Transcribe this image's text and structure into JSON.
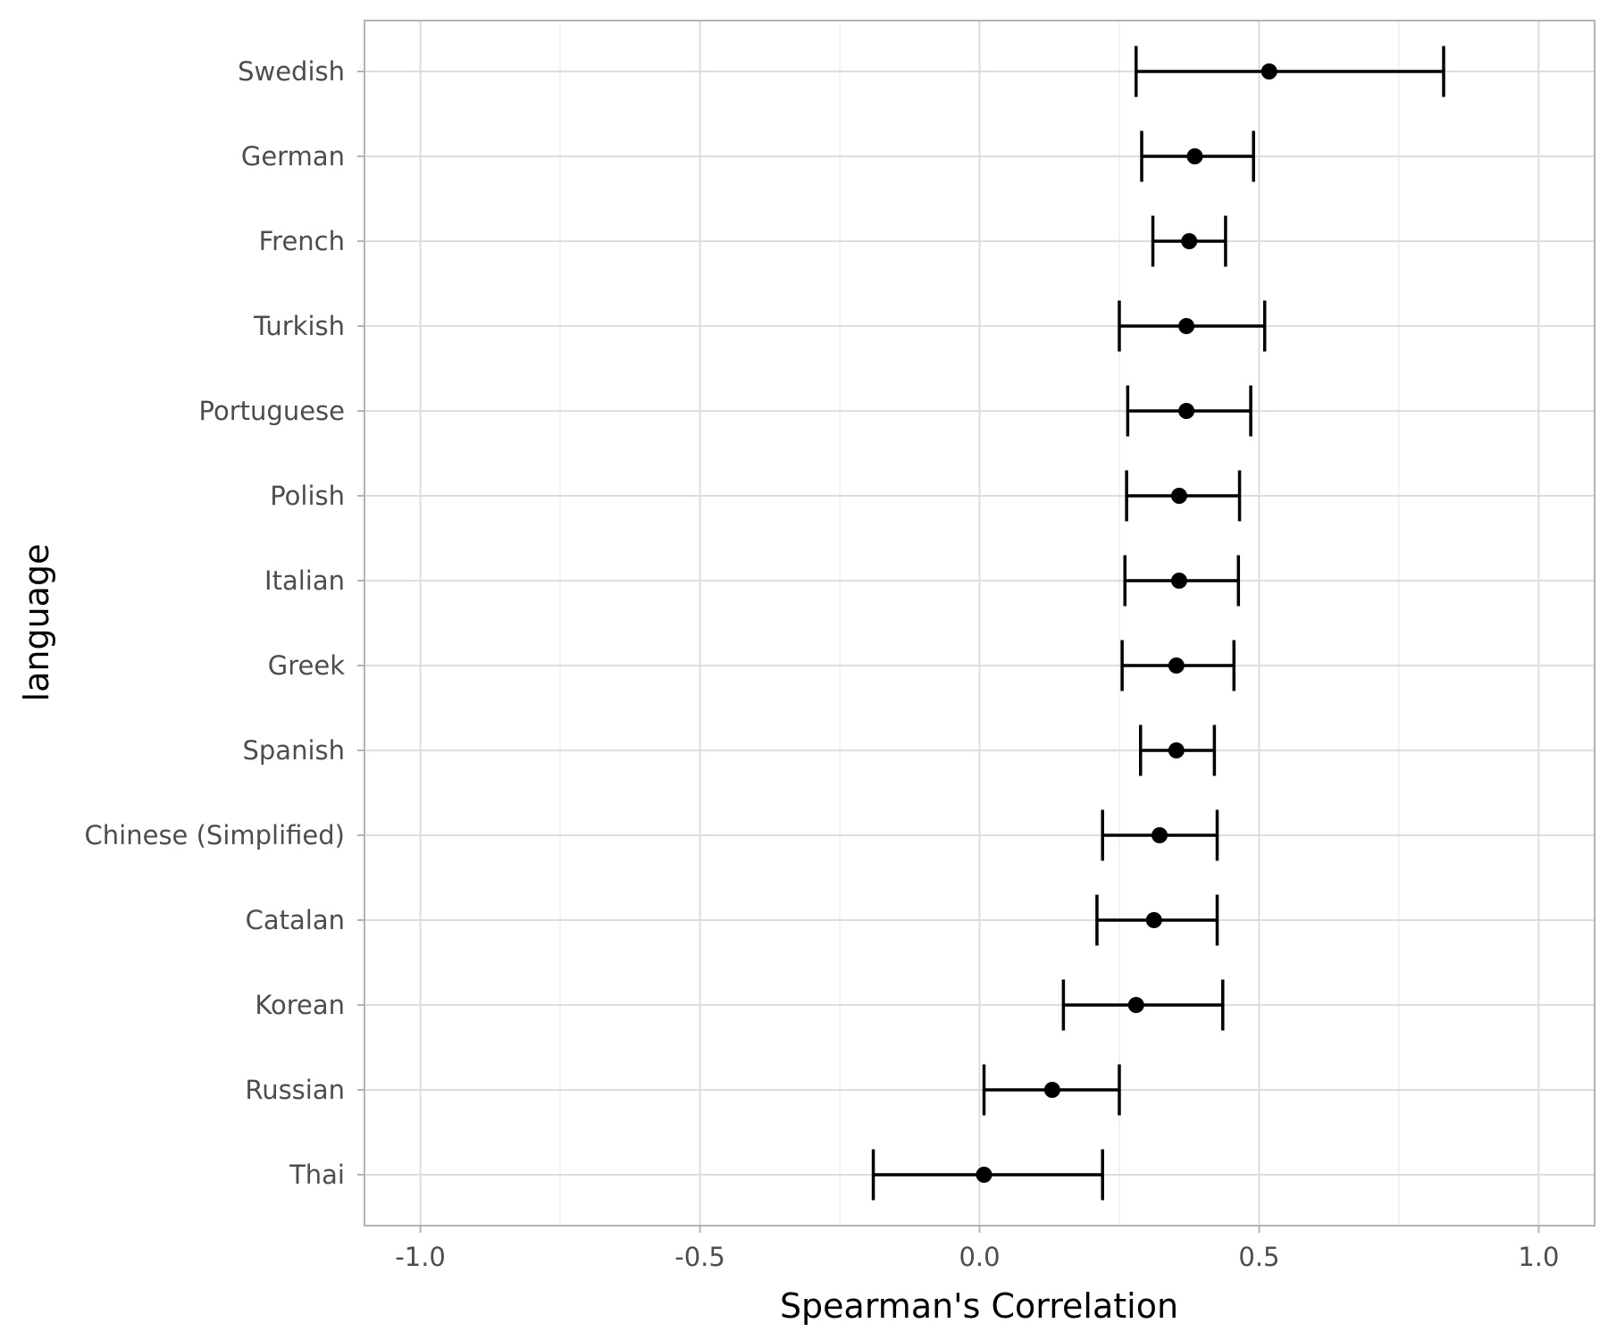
{
  "chart_data": {
    "type": "scatter",
    "title": "",
    "xlabel": "Spearman's Correlation",
    "ylabel": "language",
    "xlim": [
      -1.1,
      1.1
    ],
    "x_ticks": [
      {
        "value": -1.0,
        "label": "-1.0"
      },
      {
        "value": -0.5,
        "label": "-0.5"
      },
      {
        "value": 0.0,
        "label": "0.0"
      },
      {
        "value": 0.5,
        "label": "0.5"
      },
      {
        "value": 1.0,
        "label": "1.0"
      }
    ],
    "grid": true,
    "points": [
      {
        "language": "Swedish",
        "estimate": 0.518,
        "lower": 0.28,
        "upper": 0.83
      },
      {
        "language": "German",
        "estimate": 0.385,
        "lower": 0.29,
        "upper": 0.49
      },
      {
        "language": "French",
        "estimate": 0.375,
        "lower": 0.31,
        "upper": 0.44
      },
      {
        "language": "Turkish",
        "estimate": 0.37,
        "lower": 0.25,
        "upper": 0.51
      },
      {
        "language": "Portuguese",
        "estimate": 0.37,
        "lower": 0.265,
        "upper": 0.485
      },
      {
        "language": "Polish",
        "estimate": 0.357,
        "lower": 0.263,
        "upper": 0.465
      },
      {
        "language": "Italian",
        "estimate": 0.357,
        "lower": 0.26,
        "upper": 0.463
      },
      {
        "language": "Greek",
        "estimate": 0.352,
        "lower": 0.255,
        "upper": 0.455
      },
      {
        "language": "Spanish",
        "estimate": 0.352,
        "lower": 0.288,
        "upper": 0.42
      },
      {
        "language": "Chinese (Simplified)",
        "estimate": 0.322,
        "lower": 0.22,
        "upper": 0.425
      },
      {
        "language": "Catalan",
        "estimate": 0.312,
        "lower": 0.21,
        "upper": 0.425
      },
      {
        "language": "Korean",
        "estimate": 0.28,
        "lower": 0.15,
        "upper": 0.435
      },
      {
        "language": "Russian",
        "estimate": 0.13,
        "lower": 0.008,
        "upper": 0.25
      },
      {
        "language": "Thai",
        "estimate": 0.008,
        "lower": -0.19,
        "upper": 0.22
      }
    ]
  }
}
